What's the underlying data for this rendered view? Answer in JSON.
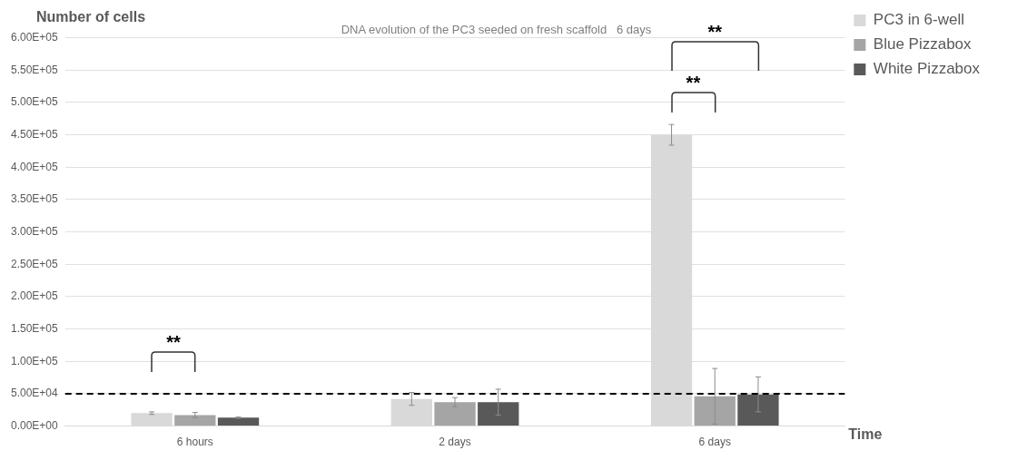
{
  "chart_data": {
    "type": "bar",
    "title": "DNA evolution of the PC3 seeded on fresh scaffold   6 days",
    "xlabel": "Time",
    "ylabel": "Number of cells",
    "categories": [
      "6 hours",
      "2 days",
      "6 days"
    ],
    "series": [
      {
        "name": "PC3 in 6-well",
        "color": "#d9d9d9",
        "values": [
          20000,
          42000,
          450000
        ],
        "errors": [
          2000,
          10000,
          16000
        ]
      },
      {
        "name": "Blue Pizzabox",
        "color": "#a5a5a5",
        "values": [
          17000,
          37000,
          46000
        ],
        "errors": [
          4000,
          7000,
          43000
        ]
      },
      {
        "name": "White Pizzabox",
        "color": "#595959",
        "values": [
          13000,
          37000,
          49000
        ],
        "errors": [
          1000,
          20000,
          27000
        ]
      }
    ],
    "ylim": [
      0,
      600000
    ],
    "yticks": [
      {
        "value": 0,
        "label": "0.00E+00"
      },
      {
        "value": 50000,
        "label": "5.00E+04"
      },
      {
        "value": 100000,
        "label": "1.00E+05"
      },
      {
        "value": 150000,
        "label": "1.50E+05"
      },
      {
        "value": 200000,
        "label": "2.00E+05"
      },
      {
        "value": 250000,
        "label": "2.50E+05"
      },
      {
        "value": 300000,
        "label": "3.00E+05"
      },
      {
        "value": 350000,
        "label": "3.50E+05"
      },
      {
        "value": 400000,
        "label": "4.00E+05"
      },
      {
        "value": 450000,
        "label": "4.50E+05"
      },
      {
        "value": 500000,
        "label": "5.00E+05"
      },
      {
        "value": 550000,
        "label": "5.50E+05"
      },
      {
        "value": 600000,
        "label": "6.00E+05"
      }
    ],
    "ref_lines": [
      {
        "axis": "y",
        "value": 50000,
        "color": "#000000",
        "line_style": "dashed"
      }
    ],
    "annotations": [
      "**",
      "**",
      "**"
    ],
    "grid": "y",
    "legend": "top right"
  }
}
